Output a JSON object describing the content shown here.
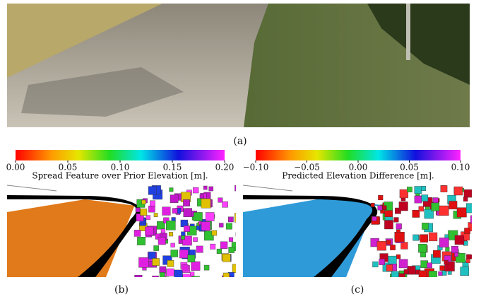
{
  "captions": [
    "(a)",
    "(b)",
    "(c)"
  ],
  "colorbars": [
    {
      "label": "Spread Feature over Prior Elevation [m].",
      "lim": [
        0,
        0.2
      ],
      "ticks": [
        {
          "value": 0,
          "label": "0.00"
        },
        {
          "value": 0.05,
          "label": "0.05"
        },
        {
          "value": 0.1,
          "label": "0.10"
        },
        {
          "value": 0.15,
          "label": "0.15"
        },
        {
          "value": 0.2,
          "label": "0.20"
        }
      ]
    },
    {
      "label": "Predicted Elevation Difference [m].",
      "lim": [
        -0.1,
        0.1
      ],
      "ticks": [
        {
          "value": -0.1,
          "label": "−0.10"
        },
        {
          "value": -0.05,
          "label": "−0.05"
        },
        {
          "value": 0,
          "label": "0.00"
        },
        {
          "value": 0.05,
          "label": "0.05"
        },
        {
          "value": 0.1,
          "label": "0.10"
        }
      ]
    }
  ]
}
